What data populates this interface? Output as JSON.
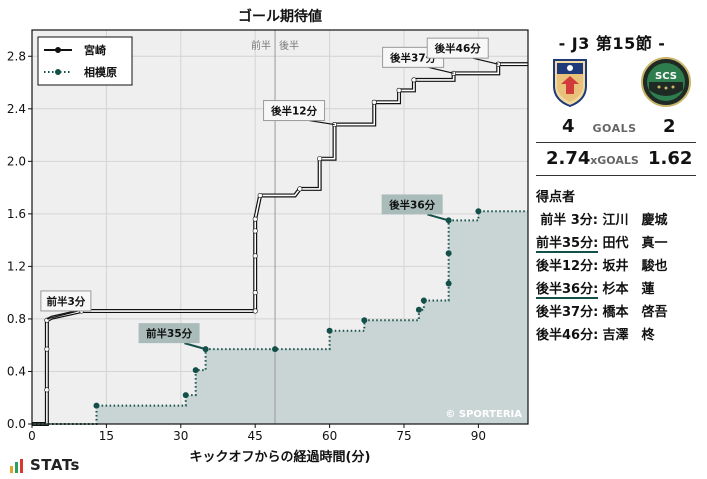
{
  "chart_data": {
    "type": "line",
    "title": "ゴール期待値",
    "xlabel": "キックオフからの経過時間(分)",
    "ylabel": "",
    "xlim": [
      0,
      100
    ],
    "ylim": [
      0,
      3.0
    ],
    "x_ticks": [
      0,
      15,
      30,
      45,
      60,
      75,
      90
    ],
    "y_ticks": [
      0.0,
      0.4,
      0.8,
      1.2,
      1.6,
      2.0,
      2.4,
      2.8
    ],
    "half_line_x": 49,
    "half_labels": {
      "first": "前半",
      "second": "後半"
    },
    "grid": true,
    "legend_position": "top-left",
    "watermark": "© SPORTERIA",
    "series": [
      {
        "name": "宮崎",
        "color": "#111111",
        "style": "solid",
        "points": [
          [
            0,
            0
          ],
          [
            3,
            0
          ],
          [
            3,
            0.26
          ],
          [
            3,
            0.57
          ],
          [
            3,
            0.79
          ],
          [
            4,
            0.81
          ],
          [
            10,
            0.86
          ],
          [
            45,
            0.86
          ],
          [
            45,
            0.86
          ],
          [
            45,
            1.0
          ],
          [
            45,
            1.28
          ],
          [
            45,
            1.47
          ],
          [
            45,
            1.56
          ],
          [
            46,
            1.74
          ],
          [
            53,
            1.74
          ],
          [
            54,
            1.79
          ],
          [
            58,
            1.79
          ],
          [
            58,
            2.02
          ],
          [
            61,
            2.02
          ],
          [
            61,
            2.28
          ],
          [
            69,
            2.28
          ],
          [
            69,
            2.45
          ],
          [
            74,
            2.45
          ],
          [
            74,
            2.54
          ],
          [
            77,
            2.54
          ],
          [
            77,
            2.62
          ],
          [
            85,
            2.62
          ],
          [
            85,
            2.67
          ],
          [
            94,
            2.67
          ],
          [
            94,
            2.74
          ],
          [
            100,
            2.74
          ]
        ],
        "markers": [
          [
            3,
            0.26
          ],
          [
            3,
            0.57
          ],
          [
            3,
            0.79
          ],
          [
            10,
            0.86
          ],
          [
            45,
            0.86
          ],
          [
            45,
            1.0
          ],
          [
            45,
            1.28
          ],
          [
            45,
            1.47
          ],
          [
            45,
            1.56
          ],
          [
            46,
            1.74
          ],
          [
            54,
            1.79
          ],
          [
            58,
            2.02
          ],
          [
            61,
            2.28
          ],
          [
            69,
            2.45
          ],
          [
            74,
            2.54
          ],
          [
            77,
            2.62
          ],
          [
            85,
            2.67
          ],
          [
            94,
            2.74
          ]
        ]
      },
      {
        "name": "相模原",
        "color": "#14504a",
        "style": "dotted",
        "points": [
          [
            0,
            0
          ],
          [
            13,
            0
          ],
          [
            13,
            0.14
          ],
          [
            31,
            0.14
          ],
          [
            31,
            0.22
          ],
          [
            33,
            0.22
          ],
          [
            33,
            0.41
          ],
          [
            35,
            0.41
          ],
          [
            35,
            0.57
          ],
          [
            49,
            0.57
          ],
          [
            60,
            0.57
          ],
          [
            60,
            0.71
          ],
          [
            67,
            0.71
          ],
          [
            67,
            0.79
          ],
          [
            78,
            0.79
          ],
          [
            78,
            0.87
          ],
          [
            79,
            0.87
          ],
          [
            79,
            0.94
          ],
          [
            84,
            0.94
          ],
          [
            84,
            1.07
          ],
          [
            84,
            1.3
          ],
          [
            84,
            1.55
          ],
          [
            90,
            1.55
          ],
          [
            90,
            1.62
          ],
          [
            100,
            1.62
          ]
        ],
        "markers": [
          [
            13,
            0.14
          ],
          [
            31,
            0.22
          ],
          [
            33,
            0.41
          ],
          [
            35,
            0.57
          ],
          [
            49,
            0.57
          ],
          [
            60,
            0.71
          ],
          [
            67,
            0.79
          ],
          [
            78,
            0.87
          ],
          [
            79,
            0.94
          ],
          [
            84,
            1.07
          ],
          [
            84,
            1.3
          ],
          [
            84,
            1.55
          ],
          [
            90,
            1.62
          ]
        ]
      }
    ],
    "annotations": [
      {
        "text": "前半3分",
        "team": "home",
        "x": 3,
        "y": 0.8
      },
      {
        "text": "後半12分",
        "team": "home",
        "x": 61,
        "y": 2.28
      },
      {
        "text": "後半37分",
        "team": "home",
        "x": 85,
        "y": 2.67
      },
      {
        "text": "後半46分",
        "team": "home",
        "x": 94,
        "y": 2.74
      },
      {
        "text": "前半35分",
        "team": "away",
        "x": 35,
        "y": 0.57
      },
      {
        "text": "後半36分",
        "team": "away",
        "x": 84,
        "y": 1.55
      }
    ]
  },
  "panel": {
    "match_title": "- J3 第15節 -",
    "home_goals": "4",
    "away_goals": "2",
    "goals_label": "GOALS",
    "home_xg": "2.74",
    "away_xg": "1.62",
    "xg_label": "xGOALS",
    "scorers_title": "得点者",
    "scorers": [
      {
        "time": "前半 3分:",
        "name": "江川　慶城",
        "team": "home"
      },
      {
        "time": "前半35分:",
        "name": "田代　真一",
        "team": "away"
      },
      {
        "time": "後半12分:",
        "name": "坂井　駿也",
        "team": "home"
      },
      {
        "time": "後半36分:",
        "name": "杉本　蓮",
        "team": "away"
      },
      {
        "time": "後半37分:",
        "name": "橋本　啓吾",
        "team": "home"
      },
      {
        "time": "後半46分:",
        "name": "吉澤　柊",
        "team": "home"
      }
    ],
    "home_logo_icon": "miyazaki-crest-icon",
    "away_logo_icon": "sagamihara-crest-icon",
    "away_logo_text": "SCS"
  },
  "footer": {
    "brand": "STATs",
    "brand_colors": [
      "#e2a32b",
      "#2aa05a",
      "#d8362f"
    ]
  }
}
